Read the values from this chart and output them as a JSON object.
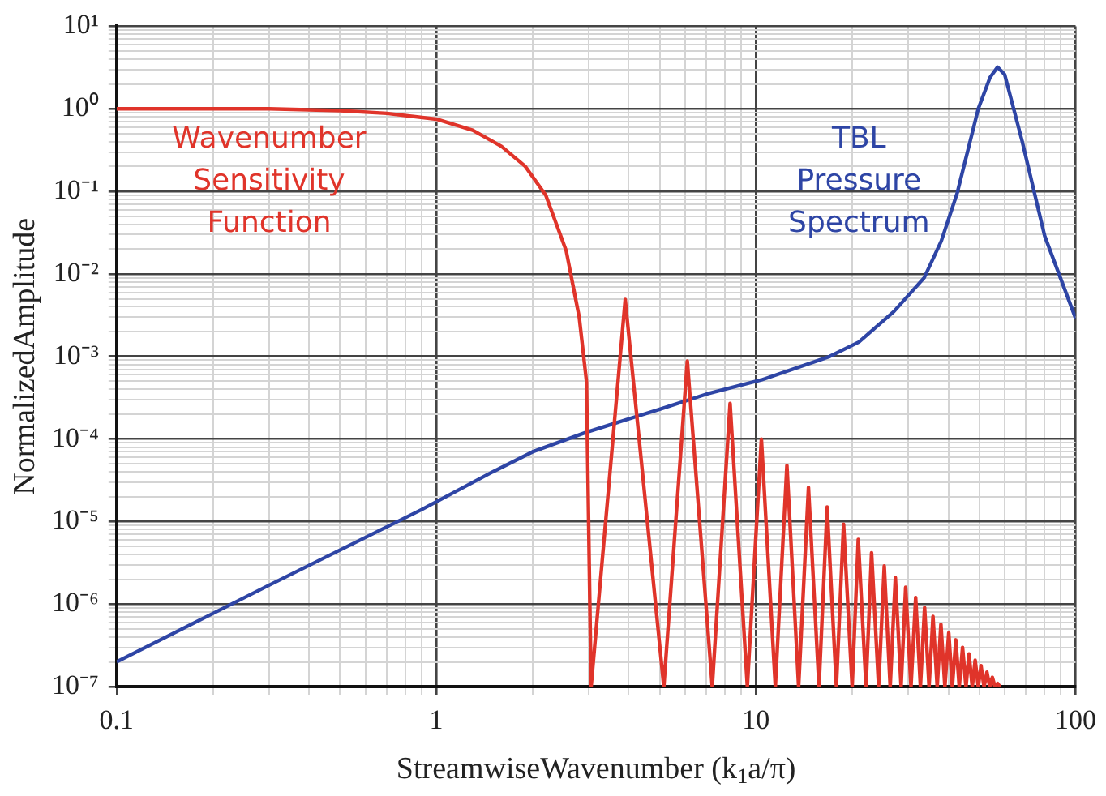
{
  "chart_data": {
    "type": "line",
    "xlabel": "StreamwiseWavenumber (k$_{1}$a/π)",
    "ylabel": "NormalizedAmplitude",
    "log": "xy",
    "grid": true,
    "legend": false,
    "marker": "none",
    "line_style": "solid",
    "xlim": [
      0.1,
      100
    ],
    "ylim": [
      1e-07,
      10
    ],
    "xticks": [
      0.1,
      1,
      10,
      100
    ],
    "yticks": [
      {
        "value": 1e-07,
        "label": "10⁻⁷"
      },
      {
        "value": 1e-06,
        "label": "10⁻⁶"
      },
      {
        "value": 1e-05,
        "label": "10⁻⁵"
      },
      {
        "value": 0.0001,
        "label": "10⁻⁴"
      },
      {
        "value": 0.001,
        "label": "10⁻³"
      },
      {
        "value": 0.01,
        "label": "10⁻²"
      },
      {
        "value": 0.1,
        "label": "10⁻¹"
      },
      {
        "value": 1,
        "label": "10⁰"
      },
      {
        "value": 10,
        "label": "10¹"
      }
    ],
    "series": [
      {
        "name": "Wavenumber Sensitivity Function",
        "color": "#e0342a",
        "x": [
          0.1,
          0.3,
          0.5,
          0.7,
          1,
          1.3,
          1.6,
          1.9,
          2.2,
          2.55,
          2.8,
          2.95,
          3.05,
          3.9,
          5.15,
          6.1,
          7.3,
          8.3,
          9.4,
          10.4,
          11.5,
          12.5,
          13.6,
          14.6,
          15.75,
          16.7,
          17.85,
          18.8,
          20.0,
          20.9,
          22.1,
          23.0,
          24.2,
          25.2,
          26.3,
          27.3,
          28.45,
          29.4,
          30.55,
          31.6,
          32.7,
          33.7,
          34.8,
          35.8,
          36.9,
          37.9,
          39.0,
          40.1,
          41.15,
          42.2,
          43.25,
          44.3,
          45.4,
          46.4,
          47.5,
          48.5,
          49.6,
          50.6,
          51.7,
          52.8,
          53.85,
          54.9,
          55.95,
          57.0,
          58.05
        ],
        "values": [
          1,
          1,
          0.95,
          0.88,
          0.75,
          0.55,
          0.35,
          0.2,
          0.09,
          0.019,
          0.003,
          0.0005,
          1e-07,
          0.0049,
          1e-07,
          0.00088,
          1e-07,
          0.00027,
          1e-07,
          0.0001,
          1e-07,
          4.8e-05,
          1e-07,
          2.6e-05,
          1e-07,
          1.5e-05,
          1e-07,
          9.3e-06,
          1e-07,
          6.1e-06,
          1e-07,
          4.2e-06,
          1e-07,
          2.9e-06,
          1e-07,
          2.1e-06,
          1e-07,
          1.6e-06,
          1e-07,
          1.2e-06,
          1e-07,
          9.1e-07,
          1e-07,
          7.1e-07,
          1e-07,
          5.7e-07,
          1e-07,
          4.5e-07,
          1e-07,
          3.7e-07,
          1e-07,
          3e-07,
          1e-07,
          2.5e-07,
          1e-07,
          2.1e-07,
          1e-07,
          1.8e-07,
          1e-07,
          1.5e-07,
          1e-07,
          1.3e-07,
          1e-07,
          1.1e-07,
          1e-07
        ]
      },
      {
        "name": "TBL Pressure Spectrum",
        "color": "#2e45a5",
        "x": [
          0.1,
          0.3,
          0.9,
          1.5,
          2,
          2.93,
          5,
          7,
          10.4,
          17,
          21,
          27,
          33.6,
          38,
          42.6,
          49.6,
          54,
          57,
          60,
          68,
          80,
          100
        ],
        "values": [
          2e-07,
          1.7e-06,
          1.4e-05,
          4e-05,
          7e-05,
          0.00012,
          0.00023,
          0.00035,
          0.00052,
          0.001,
          0.0015,
          0.0035,
          0.009,
          0.025,
          0.095,
          1.0,
          2.4,
          3.2,
          2.6,
          0.41,
          0.029,
          0.0029
        ]
      }
    ]
  }
}
